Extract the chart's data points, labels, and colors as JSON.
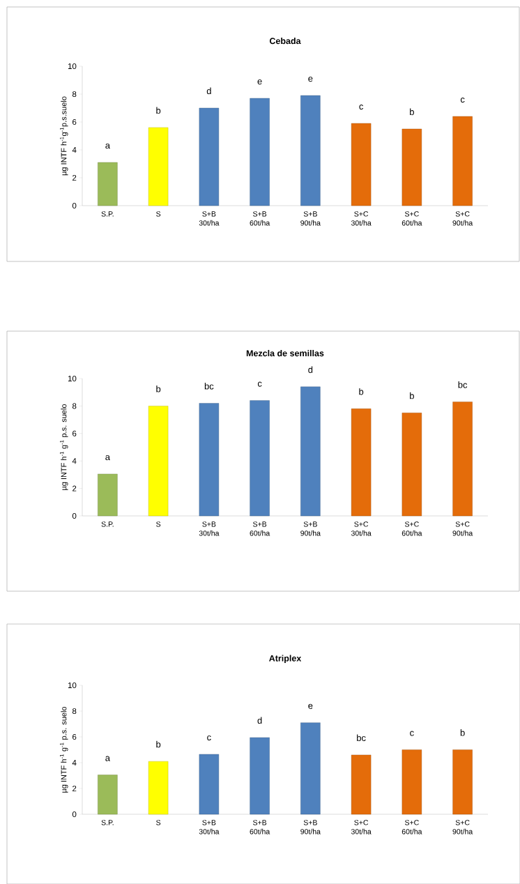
{
  "chart_data": [
    {
      "type": "bar",
      "title": "Cebada",
      "ylabel": "µg INTF h$^{-1}$g$^{-1}$p.s.suelo",
      "categories": [
        "S.P.",
        "S",
        "S+B 30t/ha",
        "S+B 60t/ha",
        "S+B 90t/ha",
        "S+C 30t/ha",
        "S+C 60t/ha",
        "S+C 90t/ha"
      ],
      "values": [
        3.1,
        5.6,
        7.0,
        7.7,
        7.9,
        5.9,
        5.5,
        6.4
      ],
      "colors": [
        "#9bbb59",
        "#ffff00",
        "#4f81bd",
        "#4f81bd",
        "#4f81bd",
        "#e46c0a",
        "#e46c0a",
        "#e46c0a"
      ],
      "value_labels": [
        "a",
        "b",
        "d",
        "e",
        "e",
        "c",
        "b",
        "c"
      ],
      "ylim": [
        0,
        10
      ],
      "yticks": [
        0,
        2,
        4,
        6,
        8,
        10
      ]
    },
    {
      "type": "bar",
      "title": "Mezcla de semillas",
      "ylabel": "µg INTF h$^{-1}$ g$^{-1}$ p.s. suelo",
      "categories": [
        "S.P.",
        "S",
        "S+B 30t/ha",
        "S+B 60t/ha",
        "S+B 90t/ha",
        "S+C 30t/ha",
        "S+C 60t/ha",
        "S+C 90t/ha"
      ],
      "values": [
        3.05,
        8.0,
        8.2,
        8.4,
        9.4,
        7.8,
        7.5,
        8.3
      ],
      "colors": [
        "#9bbb59",
        "#ffff00",
        "#4f81bd",
        "#4f81bd",
        "#4f81bd",
        "#e46c0a",
        "#e46c0a",
        "#e46c0a"
      ],
      "value_labels": [
        "a",
        "b",
        "bc",
        "c",
        "d",
        "b",
        "b",
        "bc"
      ],
      "ylim": [
        0,
        10
      ],
      "yticks": [
        0,
        2,
        4,
        6,
        8,
        10
      ]
    },
    {
      "type": "bar",
      "title": "Atriplex",
      "ylabel": "µg INTF h$^{-1}$ g$^{-1}$ p.s. suelo",
      "categories": [
        "S.P.",
        "S",
        "S+B 30t/ha",
        "S+B 60t/ha",
        "S+B 90t/ha",
        "S+C 30t/ha",
        "S+C 60t/ha",
        "S+C 90t/ha"
      ],
      "values": [
        3.05,
        4.1,
        4.65,
        5.95,
        7.1,
        4.6,
        5.0,
        5.0
      ],
      "colors": [
        "#9bbb59",
        "#ffff00",
        "#4f81bd",
        "#4f81bd",
        "#4f81bd",
        "#e46c0a",
        "#e46c0a",
        "#e46c0a"
      ],
      "value_labels": [
        "a",
        "b",
        "c",
        "d",
        "e",
        "bc",
        "c",
        "b"
      ],
      "ylim": [
        0,
        10
      ],
      "yticks": [
        0,
        2,
        4,
        6,
        8,
        10
      ]
    }
  ]
}
